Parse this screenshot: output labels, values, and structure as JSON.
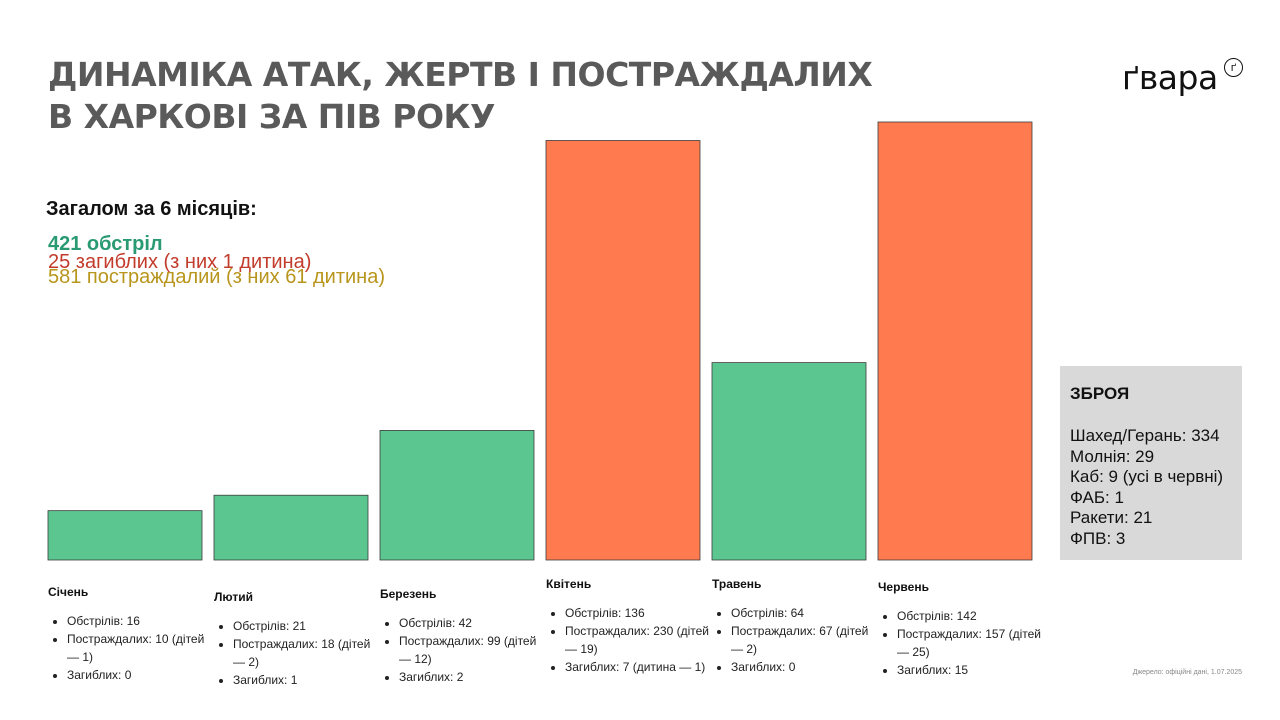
{
  "title_lines": [
    "ДИНАМІКА АТАК, ЖЕРТВ І ПОСТРАЖДАЛИХ",
    "В ХАРКОВІ ЗА ПІВ РОКУ"
  ],
  "logo": "ґвара",
  "logo_mark": "ґ",
  "summary": {
    "title": "Загалом за 6 місяців:",
    "attacks": "421 обстріл",
    "deaths": "25 загиблих (з них 1 дитина)",
    "injured": "581 постраждалий (з них 61 дитина)"
  },
  "months": [
    {
      "name": "Січень",
      "details": [
        "Обстрілів: 16",
        "Постраждалих: 10 (дітей — 1)",
        "Загиблих: 0"
      ]
    },
    {
      "name": "Лютий",
      "details": [
        "Обстрілів: 21",
        "Постраждалих: 18 (дітей — 2)",
        "Загиблих: 1"
      ]
    },
    {
      "name": "Березень",
      "details": [
        "Обстрілів: 42",
        "Постраждалих: 99 (дітей — 12)",
        "Загиблих: 2"
      ]
    },
    {
      "name": "Квітень",
      "details": [
        "Обстрілів: 136",
        "Постраждалих: 230 (дітей — 19)",
        "Загиблих: 7 (дитина — 1)"
      ]
    },
    {
      "name": "Травень",
      "details": [
        "Обстрілів: 64",
        "Постраждалих: 67 (дітей — 2)",
        "Загиблих: 0"
      ]
    },
    {
      "name": "Червень",
      "details": [
        "Обстрілів: 142",
        "Постраждалих: 157 (дітей — 25)",
        "Загиблих: 15"
      ]
    }
  ],
  "weapons": {
    "title": "ЗБРОЯ",
    "items": [
      "Шахед/Герань: 334",
      "Молнія: 29",
      "Каб: 9 (усі в червні)",
      "ФАБ: 1",
      "Ракети: 21",
      "ФПВ: 3"
    ]
  },
  "source": "Джерело: офіційні дані, 1.07.2025",
  "colors": {
    "green": "#5bc68f",
    "orange": "#ff7a4f"
  },
  "chart_data": {
    "type": "bar",
    "categories": [
      "Січень",
      "Лютий",
      "Березень",
      "Квітень",
      "Травень",
      "Червень"
    ],
    "values": [
      16,
      21,
      42,
      136,
      64,
      142
    ],
    "bar_colors": [
      "#5bc68f",
      "#5bc68f",
      "#5bc68f",
      "#ff7a4f",
      "#5bc68f",
      "#ff7a4f"
    ],
    "ylim": [
      0,
      142
    ],
    "grid": false,
    "legend": "none"
  }
}
